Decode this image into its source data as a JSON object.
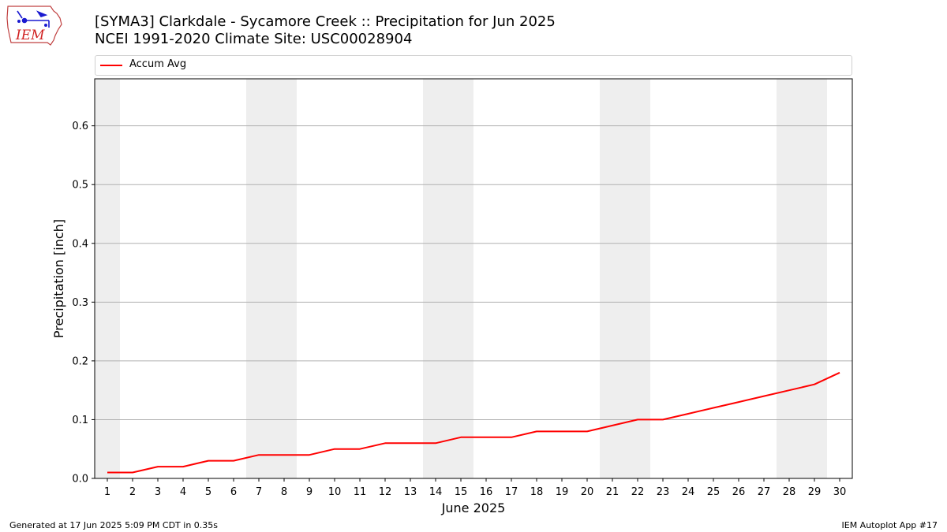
{
  "header": {
    "title_line1": "[SYMA3] Clarkdale - Sycamore Creek :: Precipitation for Jun 2025",
    "title_line2": "NCEI 1991-2020 Climate Site: USC00028904"
  },
  "logo": {
    "text": "IEM",
    "icon": "iem-iowa-logo"
  },
  "footer": {
    "left": "Generated at 17 Jun 2025 5:09 PM CDT in 0.35s",
    "right": "IEM Autoplot App #17"
  },
  "colors": {
    "series": "#ff0000",
    "weekend_band": "#eeeeee",
    "grid": "#b0b0b0"
  },
  "chart_data": {
    "type": "line",
    "xlabel": "June 2025",
    "ylabel": "Precipitation [inch]",
    "x": [
      1,
      2,
      3,
      4,
      5,
      6,
      7,
      8,
      9,
      10,
      11,
      12,
      13,
      14,
      15,
      16,
      17,
      18,
      19,
      20,
      21,
      22,
      23,
      24,
      25,
      26,
      27,
      28,
      29,
      30
    ],
    "xlim": [
      0.5,
      30.5
    ],
    "ylim": [
      0,
      0.68
    ],
    "yticks": [
      0.0,
      0.1,
      0.2,
      0.3,
      0.4,
      0.5,
      0.6
    ],
    "ytick_labels": [
      "0.0",
      "0.1",
      "0.2",
      "0.3",
      "0.4",
      "0.5",
      "0.6"
    ],
    "grid": "y-major",
    "legend_placement": "top",
    "shaded_days": [
      1,
      7,
      8,
      14,
      15,
      21,
      22,
      28,
      29
    ],
    "series": [
      {
        "name": "Accum Avg",
        "color": "#ff0000",
        "values": [
          0.01,
          0.01,
          0.02,
          0.02,
          0.03,
          0.03,
          0.04,
          0.04,
          0.04,
          0.05,
          0.05,
          0.06,
          0.06,
          0.06,
          0.07,
          0.07,
          0.07,
          0.08,
          0.08,
          0.08,
          0.09,
          0.1,
          0.1,
          0.11,
          0.12,
          0.13,
          0.14,
          0.15,
          0.16,
          0.18
        ]
      }
    ]
  }
}
